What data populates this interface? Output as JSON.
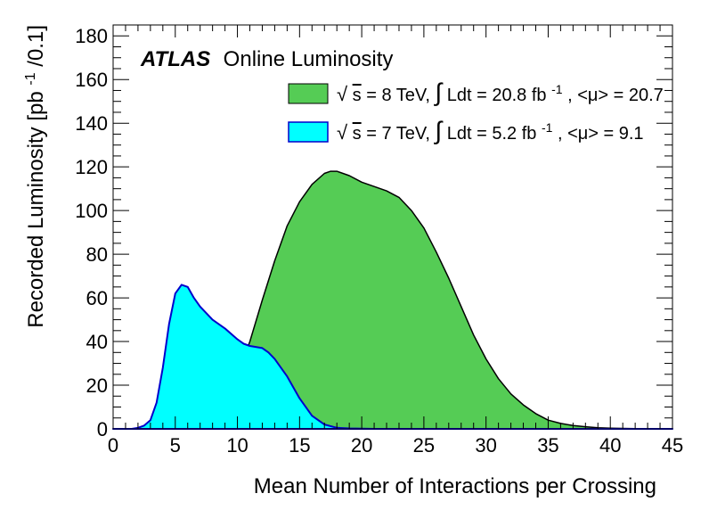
{
  "chart_data": {
    "type": "area",
    "xlabel": "Mean Number of Interactions per Crossing",
    "ylabel": "Recorded Luminosity [pb",
    "ylabel_sup": "-1",
    "ylabel_tail": "/0.1]",
    "xlim": [
      0,
      45
    ],
    "ylim": [
      0,
      185
    ],
    "x_ticks": [
      "0",
      "5",
      "10",
      "15",
      "20",
      "25",
      "30",
      "35",
      "40",
      "45"
    ],
    "y_ticks": [
      "0",
      "20",
      "40",
      "60",
      "80",
      "100",
      "120",
      "140",
      "160",
      "180"
    ],
    "x_tick_values": [
      0,
      5,
      10,
      15,
      20,
      25,
      30,
      35,
      40,
      45
    ],
    "y_tick_values": [
      0,
      20,
      40,
      60,
      80,
      100,
      120,
      140,
      160,
      180
    ],
    "grid": false,
    "legend_position": "top-right",
    "annotation": {
      "experiment": "ATLAS",
      "label": "Online Luminosity"
    },
    "series": [
      {
        "name": "√s = 8 TeV, ∫Ldt = 20.8 fb-1, <μ> = 20.7",
        "legend": {
          "sqrt_symbol": "√",
          "sqrt_arg": "s",
          "energy_text": " = 8 TeV, ",
          "integral_symbol": "∫",
          "lumi_text": "Ldt = 20.8 fb",
          "lumi_sup": "-1",
          "mu_text": ", <μ> = 20.7"
        },
        "color": "#55cc55",
        "line_color": "#000000",
        "x": [
          0,
          2,
          3,
          4,
          5,
          6,
          7,
          8,
          9,
          10,
          11,
          12,
          13,
          14,
          15,
          16,
          17,
          17.5,
          18,
          19,
          20,
          21,
          22,
          23,
          24,
          25,
          26,
          27,
          28,
          29,
          30,
          31,
          32,
          33,
          34,
          35,
          36,
          37,
          38,
          39,
          40,
          42,
          45
        ],
        "y": [
          0,
          0,
          0,
          0,
          0.2,
          1,
          3,
          7,
          14,
          25,
          40,
          59,
          77,
          93,
          104,
          112,
          117,
          118,
          118,
          116,
          113,
          111,
          109,
          106,
          100,
          92,
          81,
          69,
          56,
          43,
          32,
          23,
          16,
          11,
          7,
          4,
          2.5,
          1.5,
          1,
          0.5,
          0.3,
          0.1,
          0
        ]
      },
      {
        "name": "√s = 7 TeV, ∫Ldt = 5.2 fb-1, <μ> = 9.1",
        "legend": {
          "sqrt_symbol": "√",
          "sqrt_arg": "s",
          "energy_text": " = 7 TeV, ",
          "integral_symbol": "∫",
          "lumi_text": "Ldt = 5.2 fb",
          "lumi_sup": "-1",
          "mu_text": ", <μ> =  9.1"
        },
        "color": "#00ffff",
        "line_color": "#0000cc",
        "x": [
          0,
          1.5,
          2,
          2.5,
          3,
          3.5,
          4,
          4.5,
          5,
          5.5,
          6,
          6.5,
          7,
          8,
          9,
          10,
          10.5,
          11,
          12,
          12.5,
          13,
          14,
          15,
          16,
          17,
          18,
          19,
          20,
          21,
          22,
          45
        ],
        "y": [
          0,
          0,
          0.5,
          1.5,
          4,
          12,
          28,
          48,
          62,
          66,
          65,
          60,
          56,
          50,
          46,
          41,
          39,
          38,
          37,
          35,
          32,
          24,
          14,
          6,
          2,
          0.5,
          0.2,
          0.1,
          0,
          0,
          0
        ]
      }
    ]
  }
}
